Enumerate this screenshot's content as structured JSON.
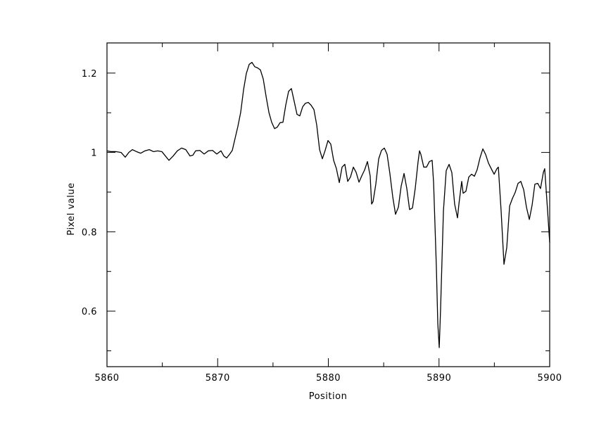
{
  "chart_data": {
    "type": "line",
    "xlabel": "Position",
    "ylabel": "Pixel value",
    "xlim": [
      5860,
      5900
    ],
    "ylim": [
      0.46,
      1.276
    ],
    "xticks": [
      5860,
      5870,
      5880,
      5890,
      5900
    ],
    "yticks": [
      0.6,
      0.8,
      1,
      1.2
    ],
    "xminorticks": [
      5865,
      5875,
      5885,
      5895
    ],
    "yminorticks": [
      0.5,
      0.7,
      0.9,
      1.1
    ],
    "color": "#000000",
    "x": [
      5860.0,
      5860.38,
      5860.83,
      5861.27,
      5861.65,
      5861.97,
      5862.29,
      5862.67,
      5863.05,
      5863.43,
      5863.82,
      5864.2,
      5864.58,
      5864.96,
      5865.28,
      5865.6,
      5865.98,
      5866.36,
      5866.74,
      5867.12,
      5867.5,
      5867.76,
      5868.01,
      5868.39,
      5868.78,
      5869.16,
      5869.54,
      5869.92,
      5870.3,
      5870.56,
      5870.81,
      5871.07,
      5871.32,
      5871.57,
      5871.83,
      5872.08,
      5872.34,
      5872.59,
      5872.85,
      5873.1,
      5873.35,
      5873.61,
      5873.86,
      5874.12,
      5874.37,
      5874.63,
      5874.88,
      5875.14,
      5875.39,
      5875.64,
      5875.9,
      5876.15,
      5876.41,
      5876.66,
      5876.92,
      5877.17,
      5877.42,
      5877.68,
      5877.93,
      5878.19,
      5878.44,
      5878.7,
      5878.95,
      5879.21,
      5879.46,
      5879.71,
      5879.97,
      5880.22,
      5880.48,
      5880.73,
      5880.99,
      5881.24,
      5881.49,
      5881.75,
      5882.0,
      5882.26,
      5882.51,
      5882.77,
      5883.02,
      5883.28,
      5883.53,
      5883.78,
      5883.91,
      5884.04,
      5884.29,
      5884.55,
      5884.8,
      5885.06,
      5885.31,
      5885.56,
      5885.82,
      5886.07,
      5886.33,
      5886.58,
      5886.84,
      5887.09,
      5887.34,
      5887.6,
      5887.85,
      5888.11,
      5888.24,
      5888.36,
      5888.62,
      5888.87,
      5889.13,
      5889.38,
      5889.51,
      5889.76,
      5889.89,
      5890.02,
      5890.14,
      5890.4,
      5890.65,
      5890.91,
      5891.16,
      5891.41,
      5891.67,
      5891.8,
      5892.05,
      5892.18,
      5892.43,
      5892.69,
      5892.94,
      5893.2,
      5893.45,
      5893.7,
      5893.96,
      5894.21,
      5894.47,
      5894.72,
      5894.98,
      5895.23,
      5895.36,
      5895.61,
      5895.87,
      5896.12,
      5896.38,
      5896.63,
      5896.88,
      5897.14,
      5897.39,
      5897.65,
      5897.9,
      5898.16,
      5898.41,
      5898.66,
      5898.92,
      5899.17,
      5899.43,
      5899.55,
      5899.81,
      5900.0
    ],
    "values": [
      1.004,
      1.002,
      1.002,
      1.0,
      0.988,
      1.0,
      1.007,
      1.002,
      0.998,
      1.004,
      1.007,
      1.002,
      1.004,
      1.002,
      0.991,
      0.98,
      0.991,
      1.004,
      1.011,
      1.007,
      0.991,
      0.993,
      1.004,
      1.005,
      0.996,
      1.004,
      1.005,
      0.996,
      1.004,
      0.991,
      0.986,
      0.995,
      1.005,
      1.035,
      1.066,
      1.101,
      1.158,
      1.199,
      1.222,
      1.227,
      1.216,
      1.213,
      1.208,
      1.185,
      1.142,
      1.101,
      1.076,
      1.06,
      1.064,
      1.075,
      1.076,
      1.119,
      1.154,
      1.161,
      1.128,
      1.096,
      1.092,
      1.115,
      1.124,
      1.126,
      1.119,
      1.108,
      1.069,
      1.007,
      0.984,
      1.005,
      1.03,
      1.021,
      0.98,
      0.959,
      0.924,
      0.963,
      0.97,
      0.927,
      0.938,
      0.963,
      0.95,
      0.925,
      0.941,
      0.956,
      0.977,
      0.941,
      0.87,
      0.876,
      0.92,
      0.984,
      1.005,
      1.011,
      0.995,
      0.947,
      0.888,
      0.844,
      0.862,
      0.915,
      0.947,
      0.909,
      0.856,
      0.86,
      0.909,
      0.977,
      1.004,
      0.995,
      0.963,
      0.963,
      0.977,
      0.98,
      0.924,
      0.711,
      0.569,
      0.508,
      0.604,
      0.853,
      0.954,
      0.97,
      0.949,
      0.87,
      0.835,
      0.87,
      0.927,
      0.897,
      0.902,
      0.938,
      0.945,
      0.94,
      0.957,
      0.986,
      1.009,
      0.995,
      0.973,
      0.959,
      0.945,
      0.959,
      0.963,
      0.853,
      0.718,
      0.76,
      0.865,
      0.884,
      0.899,
      0.922,
      0.927,
      0.906,
      0.862,
      0.831,
      0.867,
      0.92,
      0.922,
      0.909,
      0.95,
      0.959,
      0.853,
      0.773
    ]
  }
}
